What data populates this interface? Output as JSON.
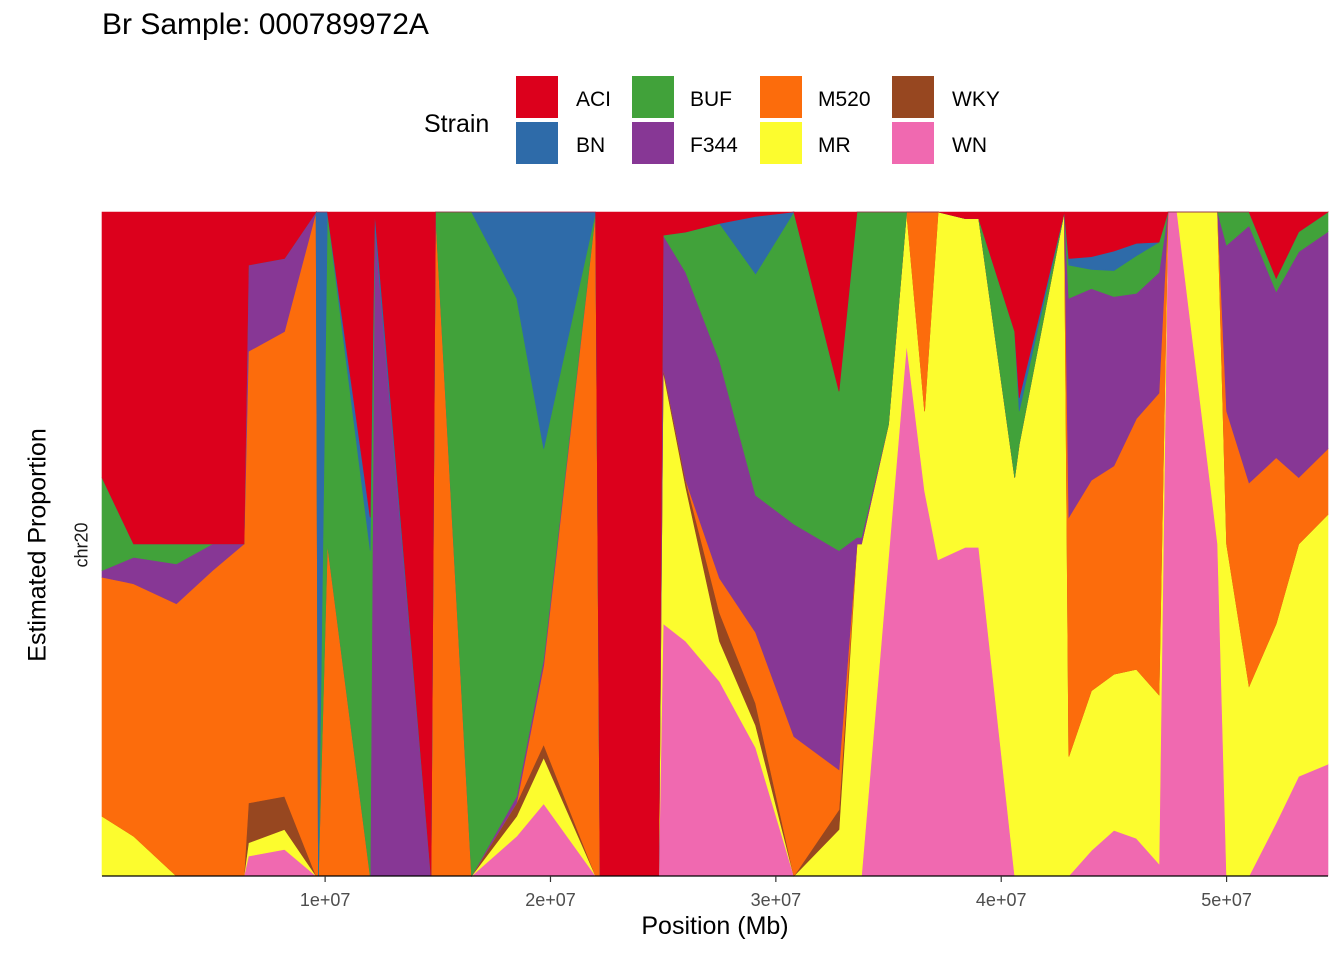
{
  "chart_data": {
    "type": "area",
    "title": "Br Sample: 000789972A",
    "xlabel": "Position (Mb)",
    "ylabel": "Estimated Proportion",
    "facet": "chr20",
    "xlim": [
      100000,
      54500000
    ],
    "ylim": [
      0,
      1
    ],
    "x_ticks": [
      10000000,
      20000000,
      30000000,
      40000000,
      50000000
    ],
    "x_tick_labels": [
      "1e+07",
      "2e+07",
      "3e+07",
      "4e+07",
      "5e+07"
    ],
    "grid": false,
    "legend": {
      "title": "Strain",
      "position": "top",
      "entries": [
        "ACI",
        "BN",
        "BUF",
        "F344",
        "M520",
        "MR",
        "WKY",
        "WN"
      ]
    },
    "colors": {
      "ACI": "#DC001C",
      "BN": "#2E6BA9",
      "BUF": "#41A23A",
      "F344": "#873795",
      "M520": "#FC6C0C",
      "MR": "#FCFC2E",
      "WKY": "#974720",
      "WN": "#F069B0"
    },
    "strain_order": [
      "WN",
      "MR",
      "WKY",
      "M520",
      "F344",
      "BUF",
      "BN",
      "ACI"
    ],
    "x": [
      100000,
      1500000,
      3400000,
      5000000,
      6400000,
      6600000,
      8200000,
      9600000,
      9700000,
      10100000,
      12000000,
      12200000,
      14700000,
      14900000,
      16500000,
      18500000,
      19700000,
      22000000,
      22200000,
      24800000,
      25000000,
      26000000,
      27500000,
      29100000,
      30800000,
      32800000,
      33600000,
      33800000,
      35000000,
      35800000,
      36600000,
      37200000,
      38400000,
      39000000,
      40600000,
      40800000,
      42800000,
      43000000,
      44000000,
      45000000,
      46000000,
      47000000,
      47400000,
      47800000,
      49600000,
      50000000,
      51000000,
      52200000,
      53200000,
      54500000
    ],
    "series": [
      {
        "name": "WN",
        "values": [
          0,
          0,
          0,
          0,
          0,
          0.03,
          0.04,
          0,
          0,
          0,
          0,
          0,
          0,
          0,
          0,
          0.06,
          0.11,
          0,
          0,
          0,
          0.38,
          0.35,
          0.34,
          0.29,
          0,
          0,
          0,
          0,
          0.48,
          0.8,
          0.58,
          0.5,
          0.5,
          0.5,
          0,
          0,
          0,
          0,
          0.04,
          0.07,
          0.06,
          0.02,
          1,
          1,
          0.5,
          0,
          0,
          0.08,
          0.15,
          0.17
        ]
      },
      {
        "name": "MR",
        "values": [
          0.09,
          0.06,
          0,
          0,
          0,
          0.02,
          0.03,
          0,
          0,
          0,
          0,
          0,
          0,
          0,
          0,
          0.03,
          0.07,
          0,
          0,
          0,
          0.38,
          0.23,
          0.07,
          0.05,
          0,
          0.07,
          0.5,
          0.5,
          0.2,
          0.2,
          0.12,
          0.55,
          0.5,
          0.5,
          0.6,
          0.65,
          1,
          0.18,
          0.25,
          0.24,
          0.27,
          0.28,
          0,
          0,
          0.5,
          0.5,
          0.28,
          0.3,
          0.35,
          0.38
        ]
      },
      {
        "name": "WKY",
        "values": [
          0,
          0,
          0,
          0,
          0,
          0.06,
          0.05,
          0,
          0,
          0,
          0,
          0,
          0,
          0,
          0,
          0.02,
          0.02,
          0,
          0,
          0,
          0.005,
          0.01,
          0.05,
          0.05,
          0,
          0.03,
          0,
          0,
          0,
          0,
          0,
          0,
          0,
          0,
          0,
          0,
          0,
          0,
          0,
          0,
          0,
          0,
          0,
          0,
          0,
          0,
          0,
          0,
          0,
          0
        ]
      },
      {
        "name": "M520",
        "values": [
          0.36,
          0.38,
          0.41,
          0.46,
          0.5,
          0.68,
          0.7,
          1,
          0,
          0.5,
          0,
          0,
          0,
          1,
          0,
          0,
          0.12,
          1,
          0,
          0,
          0,
          0,
          0.06,
          0.16,
          0.21,
          0.06,
          0,
          0,
          0,
          0,
          0.3,
          0,
          0,
          0,
          0,
          0,
          0,
          0.36,
          0.33,
          0.32,
          0.4,
          0.5,
          0,
          0,
          0,
          0.2,
          0.3,
          0.25,
          0.1,
          0.1
        ]
      },
      {
        "name": "F344",
        "values": [
          0.01,
          0.04,
          0.06,
          0.04,
          0,
          0.13,
          0.11,
          0,
          0,
          0,
          0,
          0.98,
          0,
          0,
          0,
          0.01,
          0.01,
          0,
          0,
          0,
          0.2,
          0.31,
          0.38,
          0.31,
          0.32,
          0.33,
          0.01,
          0.01,
          0,
          0,
          0,
          0,
          0,
          0,
          0,
          0,
          0,
          0.33,
          0.3,
          0.26,
          0.2,
          0.2,
          0,
          0,
          0,
          0.25,
          0.38,
          0.25,
          0.34,
          0.33
        ]
      },
      {
        "name": "BUF",
        "values": [
          0.14,
          0.02,
          0.03,
          0,
          0,
          0,
          0,
          0,
          0,
          0.5,
          0.49,
          0,
          0,
          0,
          1,
          0.75,
          0.32,
          0,
          0,
          0,
          0,
          0.06,
          0.24,
          0.5,
          0.47,
          0.24,
          0.49,
          0.49,
          0.32,
          0,
          0,
          0,
          0,
          0,
          0.22,
          0.05,
          0,
          0.05,
          0.03,
          0.04,
          0.06,
          0.05,
          0,
          0,
          0,
          0.05,
          0.02,
          0.02,
          0.03,
          0.03
        ]
      },
      {
        "name": "BN",
        "values": [
          0,
          0,
          0,
          0,
          0,
          0,
          0,
          0,
          1,
          0,
          0.05,
          0.02,
          0,
          0,
          0,
          0.13,
          0.36,
          0,
          0,
          0,
          0,
          0,
          0,
          0.13,
          0,
          0,
          0,
          0,
          0,
          0,
          0,
          0,
          0,
          0,
          0,
          0.02,
          0,
          0.01,
          0.02,
          0.03,
          0.02,
          0,
          0,
          0,
          0,
          0,
          0,
          0,
          0,
          0
        ]
      },
      {
        "name": "ACI",
        "values": [
          0.4,
          0.5,
          0.5,
          0.5,
          0.5,
          0.08,
          0.07,
          0,
          0,
          0,
          0.46,
          0,
          1,
          0,
          0,
          0,
          0,
          0,
          1,
          1,
          0.035,
          0.03,
          0.02,
          0.01,
          0,
          0.27,
          0,
          0,
          0,
          0,
          0,
          0,
          0.01,
          0.01,
          0.18,
          0.28,
          0,
          0.07,
          0.07,
          0.06,
          0.05,
          0.05,
          0,
          0,
          0,
          0,
          0,
          0.1,
          0.03,
          0
        ]
      }
    ]
  }
}
